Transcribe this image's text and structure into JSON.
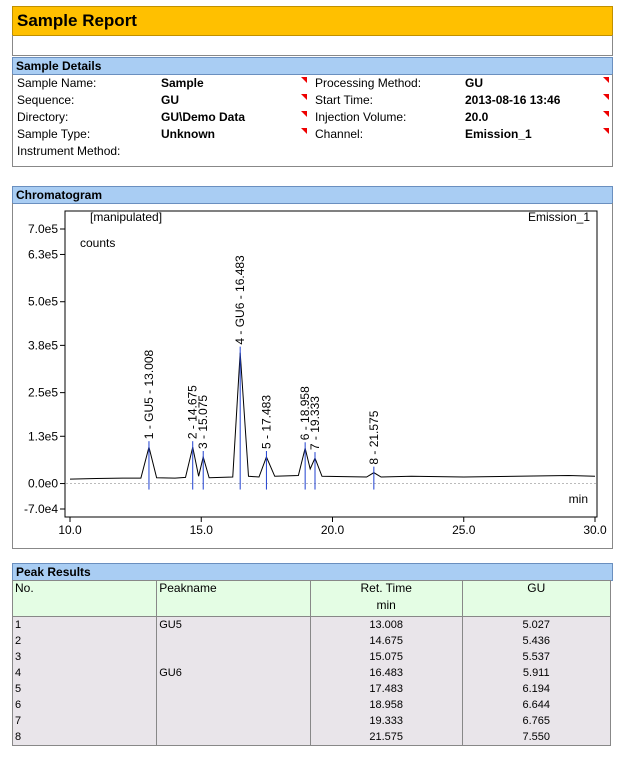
{
  "header": {
    "title": "Sample Report"
  },
  "details": {
    "title": "Sample Details",
    "left": [
      {
        "label": "Sample Name:",
        "value": "Sample"
      },
      {
        "label": "Sequence:",
        "value": "GU"
      },
      {
        "label": "Directory:",
        "value": "GU\\Demo Data"
      },
      {
        "label": "Sample Type:",
        "value": "Unknown"
      },
      {
        "label": "Instrument Method:",
        "value": null
      }
    ],
    "right": [
      {
        "label": "Processing Method:",
        "value": "GU"
      },
      {
        "label": "Start Time:",
        "value": "2013-08-16 13:46"
      },
      {
        "label": "Injection Volume:",
        "value": "20.0"
      },
      {
        "label": "Channel:",
        "value": "Emission_1"
      }
    ]
  },
  "chromatogram": {
    "title": "Chromatogram"
  },
  "chart_data": {
    "type": "line",
    "annotations": {
      "status": "[manipulated]",
      "channel": "Emission_1"
    },
    "ylabel": "counts",
    "xlabel": "min",
    "x": [
      10.0,
      11.0,
      12.0,
      12.7,
      13.008,
      13.3,
      14.0,
      14.4,
      14.675,
      14.9,
      15.075,
      15.3,
      16.2,
      16.483,
      16.8,
      17.2,
      17.483,
      17.8,
      18.7,
      18.958,
      19.15,
      19.333,
      19.6,
      21.3,
      21.575,
      21.85,
      23.0,
      25.0,
      27.0,
      29.0,
      30.0
    ],
    "series": [
      {
        "name": "Emission_1",
        "color": "#000000",
        "values": [
          12000,
          14000,
          15000,
          15000,
          100000,
          16000,
          15000,
          17000,
          100000,
          20000,
          73000,
          16000,
          18000,
          360000,
          20000,
          18000,
          73000,
          20000,
          22000,
          97000,
          40000,
          70000,
          20000,
          18000,
          30000,
          18000,
          20000,
          18000,
          20000,
          22000,
          20000
        ]
      }
    ],
    "peaks": [
      {
        "label": "1 - GU5 - 13.008",
        "x": 13.008,
        "y": 100000
      },
      {
        "label": "2 - 14.675",
        "x": 14.675,
        "y": 100000
      },
      {
        "label": "3 - 15.075",
        "x": 15.075,
        "y": 73000
      },
      {
        "label": "4 - GU6 - 16.483",
        "x": 16.483,
        "y": 360000
      },
      {
        "label": "5 - 17.483",
        "x": 17.483,
        "y": 73000
      },
      {
        "label": "6 - 18.958",
        "x": 18.958,
        "y": 97000
      },
      {
        "label": "7 - 19.333",
        "x": 19.333,
        "y": 70000
      },
      {
        "label": "8 - 21.575",
        "x": 21.575,
        "y": 30000
      }
    ],
    "xlim": [
      10,
      30
    ],
    "xticks": [
      {
        "value": 10,
        "label": "10.0"
      },
      {
        "value": 15,
        "label": "15.0"
      },
      {
        "value": 20,
        "label": "20.0"
      },
      {
        "value": 25,
        "label": "25.0"
      },
      {
        "value": 30,
        "label": "30.0"
      }
    ],
    "ylim": [
      -70000,
      700000
    ],
    "yticks": [
      {
        "value": -70000,
        "label": "-7.0e4"
      },
      {
        "value": 0,
        "label": "0.0e0"
      },
      {
        "value": 130000,
        "label": "1.3e5"
      },
      {
        "value": 250000,
        "label": "2.5e5"
      },
      {
        "value": 380000,
        "label": "3.8e5"
      },
      {
        "value": 500000,
        "label": "5.0e5"
      },
      {
        "value": 630000,
        "label": "6.3e5"
      },
      {
        "value": 700000,
        "label": "7.0e5"
      }
    ]
  },
  "peak_results": {
    "title": "Peak Results",
    "columns": [
      "No.",
      "Peakname",
      "Ret. Time",
      "GU"
    ],
    "ret_time_unit": "min",
    "rows": [
      [
        "1",
        "GU5",
        "13.008",
        "5.027"
      ],
      [
        "2",
        null,
        "14.675",
        "5.436"
      ],
      [
        "3",
        null,
        "15.075",
        "5.537"
      ],
      [
        "4",
        "GU6",
        "16.483",
        "5.911"
      ],
      [
        "5",
        null,
        "17.483",
        "6.194"
      ],
      [
        "6",
        null,
        "18.958",
        "6.644"
      ],
      [
        "7",
        null,
        "19.333",
        "6.765"
      ],
      [
        "8",
        null,
        "21.575",
        "7.550"
      ]
    ]
  }
}
